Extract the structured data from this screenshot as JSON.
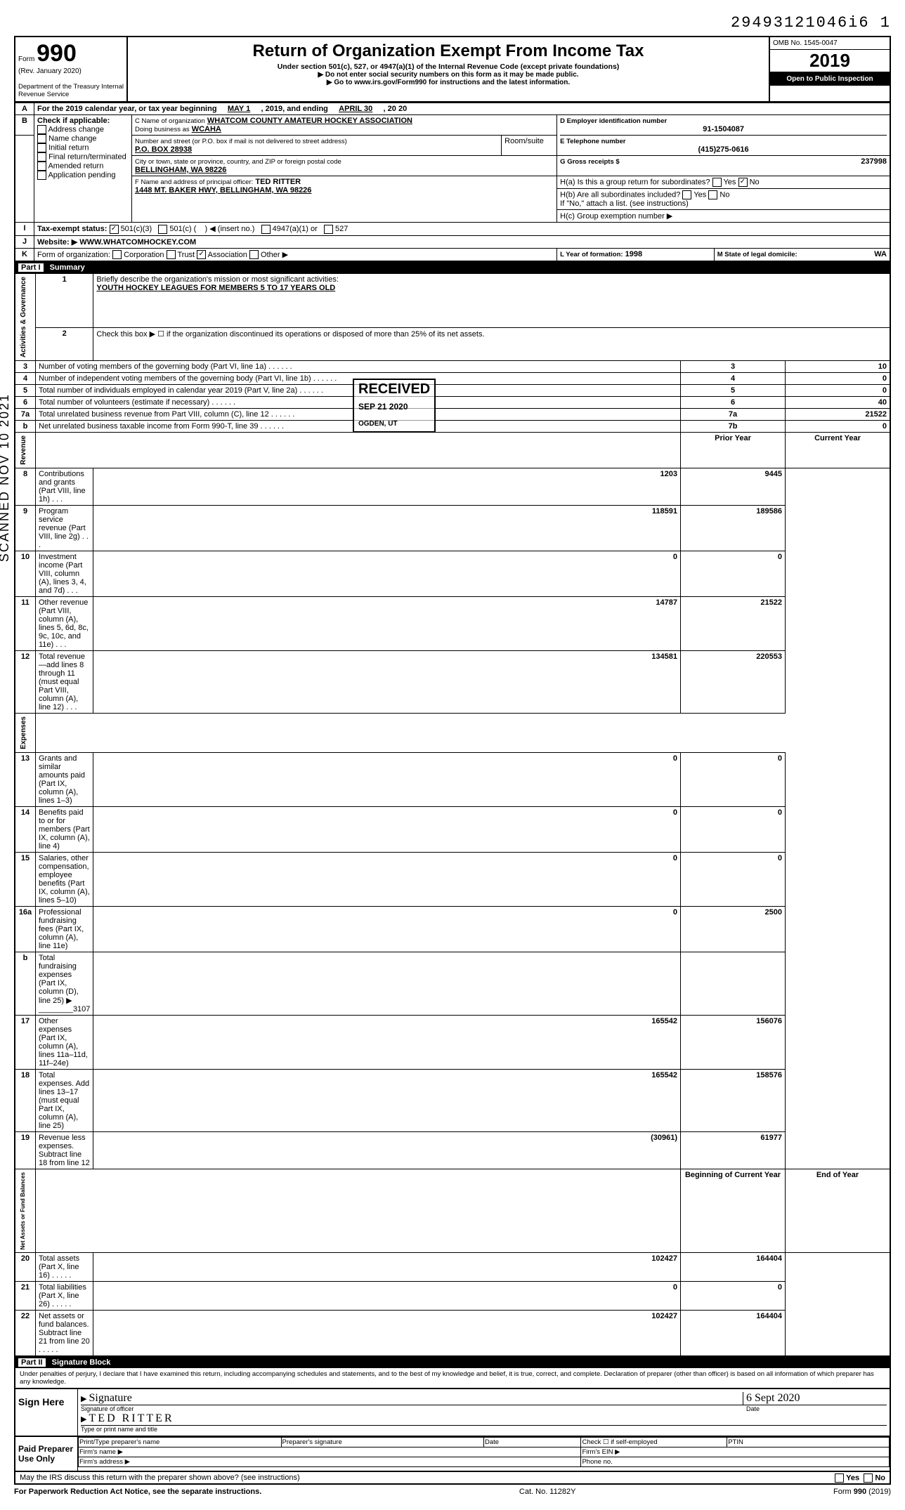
{
  "doc_number": "29493121046i6 1",
  "form": {
    "form_label": "Form",
    "number": "990",
    "rev": "(Rev. January 2020)",
    "dept": "Department of the Treasury\nInternal Revenue Service"
  },
  "title": {
    "main": "Return of Organization Exempt From Income Tax",
    "sub": "Under section 501(c), 527, or 4947(a)(1) of the Internal Revenue Code (except private foundations)",
    "arrow1": "▶ Do not enter social security numbers on this form as it may be made public.",
    "arrow2": "▶ Go to www.irs.gov/Form990 for instructions and the latest information."
  },
  "rightcol": {
    "omb": "OMB No. 1545-0047",
    "year": "2019",
    "open": "Open to Public Inspection"
  },
  "rowA": {
    "label": "A",
    "text1": "For the 2019 calendar year, or tax year beginning",
    "begin": "MAY 1",
    "mid": ", 2019, and ending",
    "end": "APRIL 30",
    "tail": ", 20  20"
  },
  "rowB": {
    "label": "B",
    "check_label": "Check if applicable:",
    "items": [
      "Address change",
      "Name change",
      "Initial return",
      "Final return/terminated",
      "Amended return",
      "Application pending"
    ]
  },
  "rowC": {
    "c_label": "C Name of organization",
    "c_value": "WHATCOM COUNTY AMATEUR HOCKEY ASSOCIATION",
    "dba_label": "Doing business as",
    "dba_value": "WCAHA",
    "street_label": "Number and street (or P.O. box if mail is not delivered to street address)",
    "street_value": "P.O. BOX 28938",
    "room_label": "Room/suite",
    "city_label": "City or town, state or province, country, and ZIP or foreign postal code",
    "city_value": "BELLINGHAM, WA 98226",
    "f_label": "F Name and address of principal officer:",
    "f_name": "TED RITTER",
    "f_addr": "1448 MT. BAKER HWY, BELLINGHAM, WA 98226"
  },
  "rowD": {
    "label": "D Employer identification number",
    "value": "91-1504087"
  },
  "rowE": {
    "label": "E Telephone number",
    "value": "(415)275-0616"
  },
  "rowG": {
    "label": "G Gross receipts $",
    "value": "237998"
  },
  "rowH": {
    "a": "H(a) Is this a group return for subordinates?",
    "a_yes": "Yes",
    "a_no": "No",
    "a_checked": "No",
    "b": "H(b) Are all subordinates included?",
    "b_yes": "Yes",
    "b_no": "No",
    "b_note": "If \"No,\" attach a list. (see instructions)",
    "c": "H(c) Group exemption number ▶"
  },
  "rowI": {
    "label": "I",
    "text": "Tax-exempt status:",
    "opts": [
      "501(c)(3)",
      "501(c) (",
      "◀ (insert no.)",
      "4947(a)(1) or",
      "527"
    ],
    "checked": 0
  },
  "rowJ": {
    "label": "J",
    "text": "Website: ▶",
    "value": "WWW.WHATCOMHOCKEY.COM"
  },
  "rowK": {
    "label": "K",
    "text": "Form of organization:",
    "opts": [
      "Corporation",
      "Trust",
      "Association",
      "Other ▶"
    ],
    "checked": 2,
    "l_label": "L Year of formation:",
    "l_value": "1998",
    "m_label": "M State of legal domicile:",
    "m_value": "WA"
  },
  "part1": {
    "hdr": "Part I",
    "title": "Summary",
    "line1_label": "Briefly describe the organization's mission or most significant activities:",
    "line1_value": "YOUTH HOCKEY LEAGUES FOR MEMBERS 5 TO 17 YEARS OLD",
    "line2": "Check this box ▶ ☐ if the organization discontinued its operations or disposed of more than 25% of its net assets.",
    "gov_rows": [
      {
        "n": "3",
        "t": "Number of voting members of the governing body (Part VI, line 1a)",
        "box": "3",
        "v": "10"
      },
      {
        "n": "4",
        "t": "Number of independent voting members of the governing body (Part VI, line 1b)",
        "box": "4",
        "v": "0"
      },
      {
        "n": "5",
        "t": "Total number of individuals employed in calendar year 2019 (Part V, line 2a)",
        "box": "5",
        "v": "0"
      },
      {
        "n": "6",
        "t": "Total number of volunteers (estimate if necessary)",
        "box": "6",
        "v": "40"
      },
      {
        "n": "7a",
        "t": "Total unrelated business revenue from Part VIII, column (C), line 12",
        "box": "7a",
        "v": "21522"
      },
      {
        "n": "b",
        "t": "Net unrelated business taxable income from Form 990-T, line 39",
        "box": "7b",
        "v": "0"
      }
    ],
    "col_prior": "Prior Year",
    "col_current": "Current Year",
    "rev_rows": [
      {
        "n": "8",
        "t": "Contributions and grants (Part VIII, line 1h)",
        "p": "1203",
        "c": "9445"
      },
      {
        "n": "9",
        "t": "Program service revenue (Part VIII, line 2g)",
        "p": "118591",
        "c": "189586"
      },
      {
        "n": "10",
        "t": "Investment income (Part VIII, column (A), lines 3, 4, and 7d)",
        "p": "0",
        "c": "0"
      },
      {
        "n": "11",
        "t": "Other revenue (Part VIII, column (A), lines 5, 6d, 8c, 9c, 10c, and 11e)",
        "p": "14787",
        "c": "21522"
      },
      {
        "n": "12",
        "t": "Total revenue—add lines 8 through 11 (must equal Part VIII, column (A), line 12)",
        "p": "134581",
        "c": "220553"
      }
    ],
    "exp_rows": [
      {
        "n": "13",
        "t": "Grants and similar amounts paid (Part IX, column (A), lines 1–3)",
        "p": "0",
        "c": "0"
      },
      {
        "n": "14",
        "t": "Benefits paid to or for members (Part IX, column (A), line 4)",
        "p": "0",
        "c": "0"
      },
      {
        "n": "15",
        "t": "Salaries, other compensation, employee benefits (Part IX, column (A), lines 5–10)",
        "p": "0",
        "c": "0"
      },
      {
        "n": "16a",
        "t": "Professional fundraising fees (Part IX, column (A), line 11e)",
        "p": "0",
        "c": "2500"
      },
      {
        "n": "b",
        "t": "Total fundraising expenses (Part IX, column (D), line 25) ▶  ________3107",
        "p": "",
        "c": ""
      },
      {
        "n": "17",
        "t": "Other expenses (Part IX, column (A), lines 11a–11d, 11f–24e)",
        "p": "165542",
        "c": "156076"
      },
      {
        "n": "18",
        "t": "Total expenses. Add lines 13–17 (must equal Part IX, column (A), line 25)",
        "p": "165542",
        "c": "158576"
      },
      {
        "n": "19",
        "t": "Revenue less expenses. Subtract line 18 from line 12",
        "p": "(30961)",
        "c": "61977"
      }
    ],
    "col_begin": "Beginning of Current Year",
    "col_end": "End of Year",
    "net_rows": [
      {
        "n": "20",
        "t": "Total assets (Part X, line 16)",
        "p": "102427",
        "c": "164404"
      },
      {
        "n": "21",
        "t": "Total liabilities (Part X, line 26)",
        "p": "0",
        "c": "0"
      },
      {
        "n": "22",
        "t": "Net assets or fund balances. Subtract line 21 from line 20",
        "p": "102427",
        "c": "164404"
      }
    ],
    "vlabels": {
      "gov": "Activities & Governance",
      "rev": "Revenue",
      "exp": "Expenses",
      "net": "Net Assets or\nFund Balances"
    }
  },
  "stamp": {
    "received": "RECEIVED",
    "date": "SEP 21 2020",
    "place": "OGDEN, UT"
  },
  "side_stamp": "SCANNED NOV 10 2021",
  "part2": {
    "hdr": "Part II",
    "title": "Signature Block",
    "perjury": "Under penalties of perjury, I declare that I have examined this return, including accompanying schedules and statements, and to the best of my knowledge and belief, it is true, correct, and complete. Declaration of preparer (other than officer) is based on all information of which preparer has any knowledge.",
    "sign_here": "Sign Here",
    "sig_officer": "Signature of officer",
    "sig_date_label": "Date",
    "sig_date": "6 Sept 2020",
    "typed_name_label": "Type or print name and title",
    "typed_name": "TED RITTER",
    "paid": "Paid Preparer Use Only",
    "prep_name_label": "Print/Type preparer's name",
    "prep_sig_label": "Preparer's signature",
    "prep_date_label": "Date",
    "prep_check": "Check ☐ if self-employed",
    "ptin": "PTIN",
    "firm_name": "Firm's name ▶",
    "firm_ein": "Firm's EIN ▶",
    "firm_addr": "Firm's address ▶",
    "phone": "Phone no.",
    "irs_discuss": "May the IRS discuss this return with the preparer shown above? (see instructions)",
    "yes": "Yes",
    "no": "No"
  },
  "footer": {
    "left": "For Paperwork Reduction Act Notice, see the separate instructions.",
    "mid": "Cat. No. 11282Y",
    "right": "Form 990 (2019)"
  }
}
